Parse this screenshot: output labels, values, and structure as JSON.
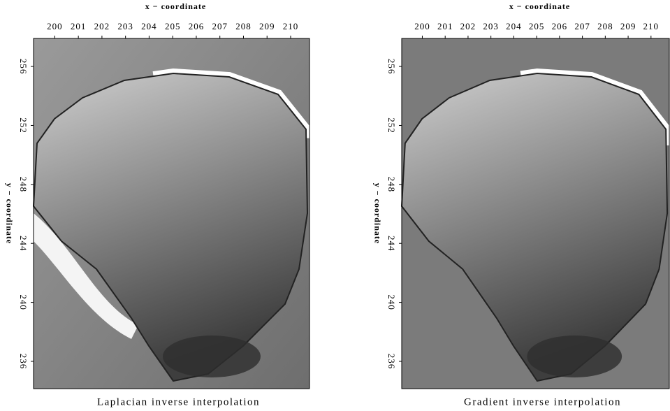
{
  "chart_data": [
    {
      "type": "image",
      "title": "Laplacian inverse interpolation",
      "xlabel": "x − coordinate",
      "ylabel": "y − coordinate",
      "xlim": [
        199.1,
        210.8
      ],
      "xticks": [
        200,
        201,
        202,
        203,
        204,
        205,
        206,
        207,
        208,
        209,
        210
      ],
      "ylim": [
        234.15,
        257.9
      ],
      "yticks": [
        236,
        240,
        244,
        248,
        252,
        256
      ]
    },
    {
      "type": "image",
      "title": "Gradient inverse interpolation",
      "xlabel": "x − coordinate",
      "ylabel": "y − coordinate",
      "xlim": [
        199.1,
        210.8
      ],
      "xticks": [
        200,
        201,
        202,
        203,
        204,
        205,
        206,
        207,
        208,
        209,
        210
      ],
      "ylim": [
        234.15,
        257.9
      ],
      "yticks": [
        236,
        240,
        244,
        248,
        252,
        256
      ]
    }
  ]
}
